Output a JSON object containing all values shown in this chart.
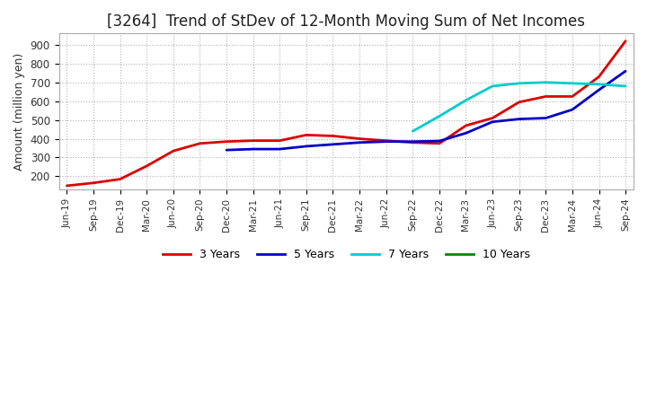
{
  "title": "[3264]  Trend of StDev of 12-Month Moving Sum of Net Incomes",
  "ylabel": "Amount (million yen)",
  "background_color": "#ffffff",
  "grid_color": "#aaaaaa",
  "title_fontsize": 12,
  "ylabel_fontsize": 9,
  "tick_labels": [
    "Jun-19",
    "Sep-19",
    "Dec-19",
    "Mar-20",
    "Jun-20",
    "Sep-20",
    "Dec-20",
    "Mar-21",
    "Jun-21",
    "Sep-21",
    "Dec-21",
    "Mar-22",
    "Jun-22",
    "Sep-22",
    "Dec-22",
    "Mar-23",
    "Jun-23",
    "Sep-23",
    "Dec-23",
    "Mar-24",
    "Jun-24",
    "Sep-24"
  ],
  "ylim": [
    130,
    960
  ],
  "yticks": [
    200,
    300,
    400,
    500,
    600,
    700,
    800,
    900
  ],
  "series_3y": {
    "color": "#dd0000",
    "x_indices": [
      0,
      1,
      2,
      3,
      4,
      5,
      6,
      7,
      8,
      9,
      10,
      11,
      12,
      13,
      14,
      15,
      16,
      17,
      18,
      19,
      20,
      21
    ],
    "values": [
      150,
      165,
      185,
      255,
      335,
      375,
      385,
      390,
      390,
      420,
      415,
      400,
      390,
      380,
      375,
      470,
      510,
      595,
      625,
      625,
      730,
      920
    ]
  },
  "series_5y": {
    "color": "#0000cc",
    "x_indices": [
      6,
      7,
      8,
      9,
      10,
      11,
      12,
      13,
      14,
      15,
      16,
      17,
      18,
      19,
      20,
      21
    ],
    "values": [
      340,
      345,
      345,
      360,
      370,
      380,
      385,
      385,
      388,
      430,
      490,
      505,
      510,
      555,
      660,
      760
    ]
  },
  "series_7y": {
    "color": "#00cccc",
    "x_indices": [
      13,
      14,
      15,
      16,
      17,
      18,
      19,
      20,
      21
    ],
    "values": [
      440,
      520,
      605,
      680,
      695,
      700,
      695,
      690,
      680
    ]
  },
  "legend_entries": [
    "3 Years",
    "5 Years",
    "7 Years",
    "10 Years"
  ],
  "legend_colors": [
    "#dd0000",
    "#0000cc",
    "#00cccc",
    "#008800"
  ]
}
